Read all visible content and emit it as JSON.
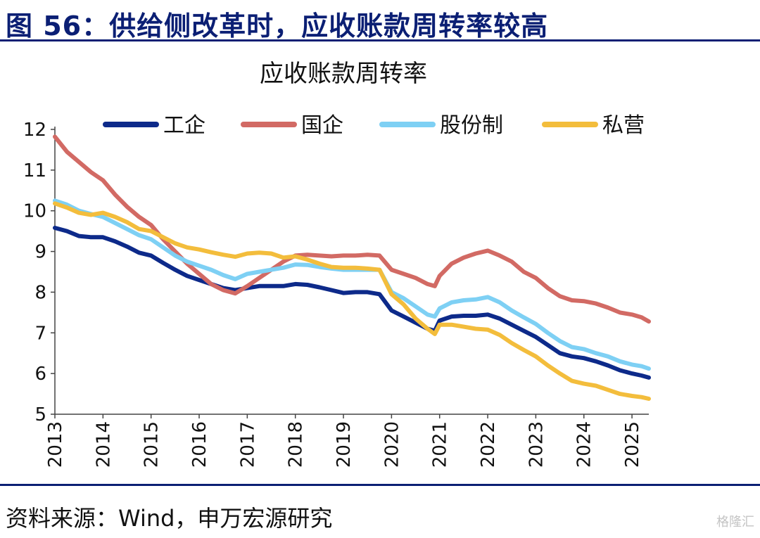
{
  "figure_title": "图 56：供给侧改革时，应收账款周转率较高",
  "source": "资料来源：Wind，申万宏源研究",
  "watermark": "格隆汇",
  "chart_data": {
    "type": "line",
    "title": "应收账款周转率",
    "xlabel": "",
    "ylabel": "",
    "ylim": [
      5,
      12
    ],
    "xlim": [
      2013,
      2025.35
    ],
    "yticks": [
      5,
      6,
      7,
      8,
      9,
      10,
      11,
      12
    ],
    "xticks": [
      "2013",
      "2014",
      "2015",
      "2016",
      "2017",
      "2018",
      "2019",
      "2020",
      "2021",
      "2022",
      "2023",
      "2024",
      "2025"
    ],
    "grid": false,
    "legend": "top",
    "series": [
      {
        "name": "工企",
        "color": "#0d2a8a",
        "points": [
          [
            2013.0,
            9.58
          ],
          [
            2013.25,
            9.5
          ],
          [
            2013.5,
            9.38
          ],
          [
            2013.75,
            9.35
          ],
          [
            2014.0,
            9.35
          ],
          [
            2014.25,
            9.25
          ],
          [
            2014.5,
            9.12
          ],
          [
            2014.75,
            8.97
          ],
          [
            2015.0,
            8.9
          ],
          [
            2015.25,
            8.72
          ],
          [
            2015.5,
            8.55
          ],
          [
            2015.75,
            8.4
          ],
          [
            2016.0,
            8.3
          ],
          [
            2016.25,
            8.2
          ],
          [
            2016.5,
            8.1
          ],
          [
            2016.75,
            8.05
          ],
          [
            2017.0,
            8.1
          ],
          [
            2017.25,
            8.15
          ],
          [
            2017.5,
            8.15
          ],
          [
            2017.75,
            8.15
          ],
          [
            2018.0,
            8.2
          ],
          [
            2018.25,
            8.18
          ],
          [
            2018.5,
            8.12
          ],
          [
            2018.75,
            8.05
          ],
          [
            2019.0,
            7.98
          ],
          [
            2019.25,
            8.0
          ],
          [
            2019.5,
            8.0
          ],
          [
            2019.75,
            7.95
          ],
          [
            2020.0,
            7.55
          ],
          [
            2020.25,
            7.4
          ],
          [
            2020.5,
            7.25
          ],
          [
            2020.75,
            7.1
          ],
          [
            2020.9,
            7.05
          ],
          [
            2021.0,
            7.3
          ],
          [
            2021.25,
            7.4
          ],
          [
            2021.5,
            7.42
          ],
          [
            2021.75,
            7.42
          ],
          [
            2022.0,
            7.45
          ],
          [
            2022.25,
            7.35
          ],
          [
            2022.5,
            7.2
          ],
          [
            2022.75,
            7.05
          ],
          [
            2023.0,
            6.9
          ],
          [
            2023.25,
            6.7
          ],
          [
            2023.5,
            6.5
          ],
          [
            2023.75,
            6.42
          ],
          [
            2024.0,
            6.38
          ],
          [
            2024.25,
            6.3
          ],
          [
            2024.5,
            6.2
          ],
          [
            2024.75,
            6.08
          ],
          [
            2025.0,
            6.0
          ],
          [
            2025.2,
            5.95
          ],
          [
            2025.35,
            5.9
          ]
        ]
      },
      {
        "name": "国企",
        "color": "#d26a64",
        "points": [
          [
            2013.0,
            11.82
          ],
          [
            2013.25,
            11.45
          ],
          [
            2013.5,
            11.2
          ],
          [
            2013.75,
            10.95
          ],
          [
            2014.0,
            10.75
          ],
          [
            2014.25,
            10.4
          ],
          [
            2014.5,
            10.1
          ],
          [
            2014.75,
            9.85
          ],
          [
            2015.0,
            9.65
          ],
          [
            2015.25,
            9.3
          ],
          [
            2015.5,
            9.0
          ],
          [
            2015.75,
            8.7
          ],
          [
            2016.0,
            8.45
          ],
          [
            2016.25,
            8.2
          ],
          [
            2016.5,
            8.05
          ],
          [
            2016.75,
            7.97
          ],
          [
            2017.0,
            8.15
          ],
          [
            2017.25,
            8.35
          ],
          [
            2017.5,
            8.55
          ],
          [
            2017.75,
            8.75
          ],
          [
            2018.0,
            8.9
          ],
          [
            2018.25,
            8.92
          ],
          [
            2018.5,
            8.9
          ],
          [
            2018.75,
            8.88
          ],
          [
            2019.0,
            8.9
          ],
          [
            2019.25,
            8.9
          ],
          [
            2019.5,
            8.92
          ],
          [
            2019.75,
            8.9
          ],
          [
            2020.0,
            8.55
          ],
          [
            2020.25,
            8.45
          ],
          [
            2020.5,
            8.35
          ],
          [
            2020.75,
            8.2
          ],
          [
            2020.9,
            8.15
          ],
          [
            2021.0,
            8.4
          ],
          [
            2021.25,
            8.7
          ],
          [
            2021.5,
            8.85
          ],
          [
            2021.75,
            8.95
          ],
          [
            2022.0,
            9.02
          ],
          [
            2022.25,
            8.9
          ],
          [
            2022.5,
            8.75
          ],
          [
            2022.75,
            8.5
          ],
          [
            2023.0,
            8.35
          ],
          [
            2023.25,
            8.1
          ],
          [
            2023.5,
            7.9
          ],
          [
            2023.75,
            7.8
          ],
          [
            2024.0,
            7.78
          ],
          [
            2024.25,
            7.72
          ],
          [
            2024.5,
            7.62
          ],
          [
            2024.75,
            7.5
          ],
          [
            2025.0,
            7.45
          ],
          [
            2025.2,
            7.38
          ],
          [
            2025.35,
            7.28
          ]
        ]
      },
      {
        "name": "股份制",
        "color": "#7ed0f4",
        "points": [
          [
            2013.0,
            10.25
          ],
          [
            2013.25,
            10.15
          ],
          [
            2013.5,
            10.0
          ],
          [
            2013.75,
            9.92
          ],
          [
            2014.0,
            9.85
          ],
          [
            2014.25,
            9.7
          ],
          [
            2014.5,
            9.55
          ],
          [
            2014.75,
            9.4
          ],
          [
            2015.0,
            9.3
          ],
          [
            2015.25,
            9.1
          ],
          [
            2015.5,
            8.9
          ],
          [
            2015.75,
            8.75
          ],
          [
            2016.0,
            8.65
          ],
          [
            2016.25,
            8.55
          ],
          [
            2016.5,
            8.42
          ],
          [
            2016.75,
            8.32
          ],
          [
            2017.0,
            8.45
          ],
          [
            2017.25,
            8.5
          ],
          [
            2017.5,
            8.55
          ],
          [
            2017.75,
            8.6
          ],
          [
            2018.0,
            8.68
          ],
          [
            2018.25,
            8.67
          ],
          [
            2018.5,
            8.62
          ],
          [
            2018.75,
            8.58
          ],
          [
            2019.0,
            8.55
          ],
          [
            2019.25,
            8.55
          ],
          [
            2019.5,
            8.55
          ],
          [
            2019.75,
            8.55
          ],
          [
            2020.0,
            8.0
          ],
          [
            2020.25,
            7.85
          ],
          [
            2020.5,
            7.65
          ],
          [
            2020.75,
            7.45
          ],
          [
            2020.9,
            7.4
          ],
          [
            2021.0,
            7.6
          ],
          [
            2021.25,
            7.75
          ],
          [
            2021.5,
            7.8
          ],
          [
            2021.75,
            7.82
          ],
          [
            2022.0,
            7.88
          ],
          [
            2022.25,
            7.75
          ],
          [
            2022.5,
            7.55
          ],
          [
            2022.75,
            7.38
          ],
          [
            2023.0,
            7.22
          ],
          [
            2023.25,
            7.0
          ],
          [
            2023.5,
            6.8
          ],
          [
            2023.75,
            6.65
          ],
          [
            2024.0,
            6.6
          ],
          [
            2024.25,
            6.5
          ],
          [
            2024.5,
            6.42
          ],
          [
            2024.75,
            6.3
          ],
          [
            2025.0,
            6.22
          ],
          [
            2025.2,
            6.18
          ],
          [
            2025.35,
            6.12
          ]
        ]
      },
      {
        "name": "私营",
        "color": "#f3bd3c",
        "points": [
          [
            2013.0,
            10.18
          ],
          [
            2013.25,
            10.08
          ],
          [
            2013.5,
            9.95
          ],
          [
            2013.75,
            9.9
          ],
          [
            2014.0,
            9.95
          ],
          [
            2014.25,
            9.85
          ],
          [
            2014.5,
            9.72
          ],
          [
            2014.75,
            9.55
          ],
          [
            2015.0,
            9.5
          ],
          [
            2015.25,
            9.35
          ],
          [
            2015.5,
            9.2
          ],
          [
            2015.75,
            9.1
          ],
          [
            2016.0,
            9.05
          ],
          [
            2016.25,
            8.98
          ],
          [
            2016.5,
            8.92
          ],
          [
            2016.75,
            8.87
          ],
          [
            2017.0,
            8.95
          ],
          [
            2017.25,
            8.97
          ],
          [
            2017.5,
            8.95
          ],
          [
            2017.75,
            8.85
          ],
          [
            2018.0,
            8.88
          ],
          [
            2018.25,
            8.8
          ],
          [
            2018.5,
            8.7
          ],
          [
            2018.75,
            8.62
          ],
          [
            2019.0,
            8.6
          ],
          [
            2019.25,
            8.6
          ],
          [
            2019.5,
            8.58
          ],
          [
            2019.75,
            8.55
          ],
          [
            2020.0,
            7.95
          ],
          [
            2020.25,
            7.7
          ],
          [
            2020.5,
            7.35
          ],
          [
            2020.75,
            7.1
          ],
          [
            2020.9,
            6.97
          ],
          [
            2021.0,
            7.2
          ],
          [
            2021.25,
            7.2
          ],
          [
            2021.5,
            7.15
          ],
          [
            2021.75,
            7.1
          ],
          [
            2022.0,
            7.08
          ],
          [
            2022.25,
            6.95
          ],
          [
            2022.5,
            6.75
          ],
          [
            2022.75,
            6.58
          ],
          [
            2023.0,
            6.42
          ],
          [
            2023.25,
            6.2
          ],
          [
            2023.5,
            6.0
          ],
          [
            2023.75,
            5.82
          ],
          [
            2024.0,
            5.75
          ],
          [
            2024.25,
            5.7
          ],
          [
            2024.5,
            5.6
          ],
          [
            2024.75,
            5.5
          ],
          [
            2025.0,
            5.45
          ],
          [
            2025.2,
            5.42
          ],
          [
            2025.35,
            5.38
          ]
        ]
      }
    ]
  }
}
